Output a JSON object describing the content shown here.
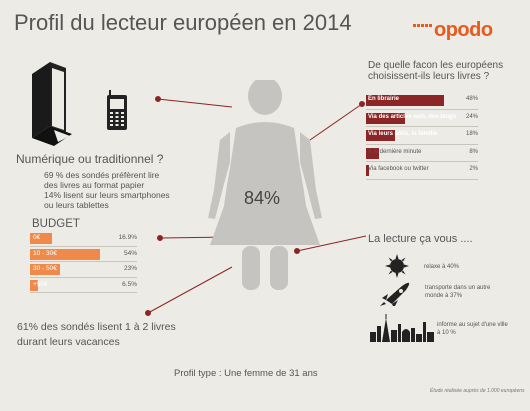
{
  "header": {
    "title": "Profil du lecteur européen en 2014",
    "brand": "opodo"
  },
  "icons": {
    "book": "book-icon",
    "phone": "mobile-phone-icon",
    "woman": "woman-silhouette-icon",
    "sun": "sun-icon",
    "rocket": "rocket-icon",
    "city": "city-skyline-icon"
  },
  "colors": {
    "background": "#ecebe6",
    "brand": "#e85a1e",
    "budget_bar": "#f08a4b",
    "choice_bar": "#8c2525",
    "accent_line": "#8c2525",
    "silhouette": "#c5c4c0"
  },
  "numerique": {
    "heading": "Numérique ou traditionnel ?",
    "line1": "69 % des sondés préfèrent lire",
    "line2": "des livres au format papier",
    "line3": "14% lisent sur leurs smartphones",
    "line4": "ou leurs tablettes"
  },
  "budget": {
    "heading": "BUDGET",
    "items": [
      {
        "label": "0€",
        "value": "16.9%",
        "pct": 16.9
      },
      {
        "label": "10 - 30€",
        "value": "54%",
        "pct": 54
      },
      {
        "label": "30 - 50€",
        "value": "23%",
        "pct": 23
      },
      {
        "label": "+50€",
        "value": "6.5%",
        "pct": 6.5
      }
    ]
  },
  "vacances": {
    "line1": "61% des sondés lisent 1 à 2 livres",
    "line2": "durant leurs vacances"
  },
  "woman": {
    "pct": "84%"
  },
  "profil_type": "Profil type : Une femme de 31 ans",
  "footer_note": "Étude réalisée auprès de 1.000 européens",
  "choice": {
    "heading_line1": "De quelle facon les européens",
    "heading_line2": "choisissent-ils leurs livres ?",
    "items": [
      {
        "label": "En librairie",
        "value": "48%",
        "pct": 48
      },
      {
        "label": "Via des articles web, des blogs",
        "value": "24%",
        "pct": 24
      },
      {
        "label": "Via leurs amis, la famille",
        "value": "18%",
        "pct": 18
      },
      {
        "label": "A la dernière minute",
        "value": "8%",
        "pct": 8
      },
      {
        "label": "Via facebook ou twitter",
        "value": "2%",
        "pct": 2
      }
    ]
  },
  "lecture": {
    "heading": "La lecture ça vous ....",
    "relaxe": "relaxe à 40%",
    "transporte_line1": "transporte dans un autre",
    "transporte_line2": "monde à 37%",
    "informe_line1": "informe au sujet d'une ville",
    "informe_line2": "à 10 %"
  }
}
